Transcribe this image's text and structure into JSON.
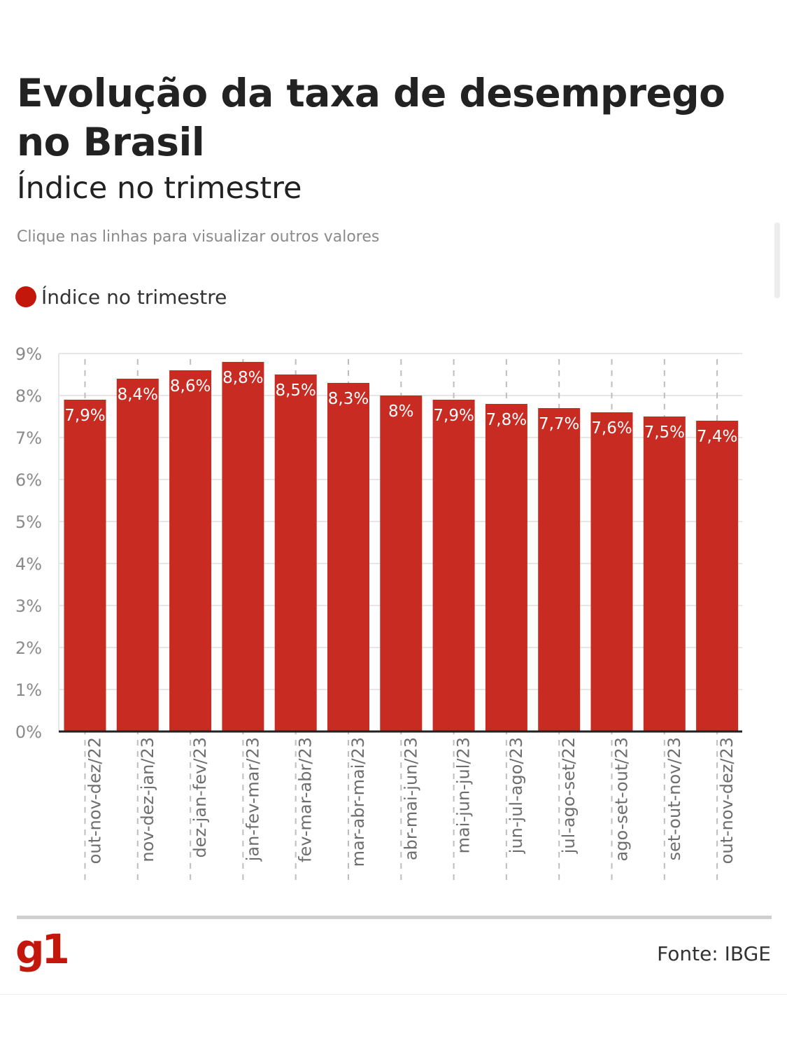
{
  "header": {
    "title": "Evolução da taxa de desemprego no Brasil",
    "subtitle": "Índice no trimestre",
    "instruction": "Clique nas linhas para visualizar outros valores"
  },
  "legend": {
    "label": "Índice no trimestre",
    "color": "#c4170c"
  },
  "colors": {
    "bar": "#c72b22",
    "grid": "#e6e6e6",
    "axis": "#222222",
    "tick_text": "#8a8a8a",
    "data_label": "#ffffff"
  },
  "footer": {
    "logo": "g1",
    "source": "Fonte: IBGE"
  },
  "chart_data": {
    "type": "bar",
    "title": "Evolução da taxa de desemprego no Brasil",
    "subtitle": "Índice no trimestre",
    "xlabel": "",
    "ylabel": "",
    "ylim": [
      0,
      9
    ],
    "yticks": [
      "0%",
      "1%",
      "2%",
      "3%",
      "4%",
      "5%",
      "6%",
      "7%",
      "8%",
      "9%"
    ],
    "grid": true,
    "legend_position": "top-left",
    "categories": [
      "out-nov-dez/22",
      "nov-dez-jan/23",
      "dez-jan-fev/23",
      "jan-fev-mar/23",
      "fev-mar-abr/23",
      "mar-abr-mai/23",
      "abr-mai-jun/23",
      "mai-jun-jul/23",
      "jun-jul-ago/23",
      "jul-ago-set/22",
      "ago-set-out/23",
      "set-out-nov/23",
      "out-nov-dez/23"
    ],
    "series": [
      {
        "name": "Índice no trimestre",
        "values": [
          7.9,
          8.4,
          8.6,
          8.8,
          8.5,
          8.3,
          8.0,
          7.9,
          7.8,
          7.7,
          7.6,
          7.5,
          7.4
        ],
        "labels": [
          "7,9%",
          "8,4%",
          "8,6%",
          "8,8%",
          "8,5%",
          "8,3%",
          "8%",
          "7,9%",
          "7,8%",
          "7,7%",
          "7,6%",
          "7,5%",
          "7,4%"
        ]
      }
    ]
  }
}
